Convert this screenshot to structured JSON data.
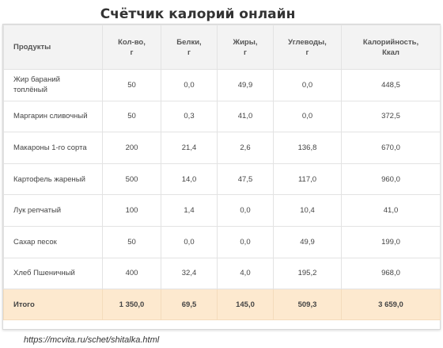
{
  "title": "Счётчик калорий онлайн",
  "table": {
    "headers": {
      "product": "Продукты",
      "qty_line1": "Кол-во,",
      "qty_line2": "г",
      "protein_line1": "Белки,",
      "protein_line2": "г",
      "fat_line1": "Жиры,",
      "fat_line2": "г",
      "carbs_line1": "Углеводы,",
      "carbs_line2": "г",
      "kcal_line1": "Калорийность,",
      "kcal_line2": "Ккал"
    },
    "rows": [
      {
        "product_line1": "Жир бараний",
        "product_line2": "топлёный",
        "qty": "50",
        "protein": "0,0",
        "fat": "49,9",
        "carbs": "0,0",
        "kcal": "448,5"
      },
      {
        "product_line1": "Маргарин сливочный",
        "product_line2": "",
        "qty": "50",
        "protein": "0,3",
        "fat": "41,0",
        "carbs": "0,0",
        "kcal": "372,5"
      },
      {
        "product_line1": "Макароны 1-го сорта",
        "product_line2": "",
        "qty": "200",
        "protein": "21,4",
        "fat": "2,6",
        "carbs": "136,8",
        "kcal": "670,0"
      },
      {
        "product_line1": "Картофель жареный",
        "product_line2": "",
        "qty": "500",
        "protein": "14,0",
        "fat": "47,5",
        "carbs": "117,0",
        "kcal": "960,0"
      },
      {
        "product_line1": "Лук репчатый",
        "product_line2": "",
        "qty": "100",
        "protein": "1,4",
        "fat": "0,0",
        "carbs": "10,4",
        "kcal": "41,0"
      },
      {
        "product_line1": "Сахар песок",
        "product_line2": "",
        "qty": "50",
        "protein": "0,0",
        "fat": "0,0",
        "carbs": "49,9",
        "kcal": "199,0"
      },
      {
        "product_line1": "Хлеб Пшеничный",
        "product_line2": "",
        "qty": "400",
        "protein": "32,4",
        "fat": "4,0",
        "carbs": "195,2",
        "kcal": "968,0"
      }
    ],
    "total": {
      "label": "Итого",
      "qty": "1 350,0",
      "protein": "69,5",
      "fat": "145,0",
      "carbs": "509,3",
      "kcal": "3 659,0"
    }
  },
  "source_url": "https://mcvita.ru/schet/shitalka.html",
  "colors": {
    "header_bg": "#f3f3f3",
    "total_bg": "#fde9cf"
  }
}
